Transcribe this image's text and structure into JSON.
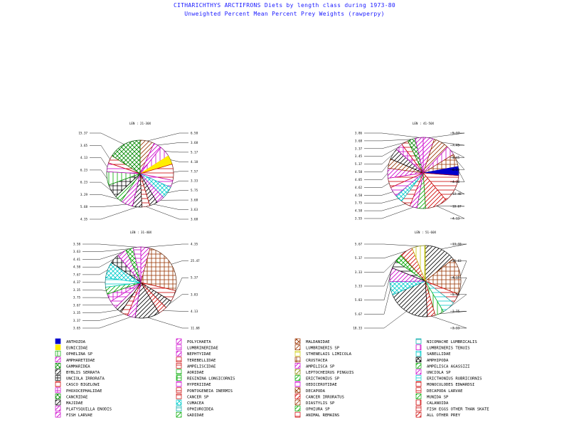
{
  "header": {
    "title": "CITHARICHTHYS ARCTIFRONS Diets by length class during 1973-80",
    "subtitle": "Unweighted Percent Mean Percent Prey  Weights (rawperpy)"
  },
  "legend": {
    "items": [
      {
        "name": "ANTHOZOA",
        "color": "#0000cc",
        "pattern": "solid"
      },
      {
        "name": "POLYCHAETA",
        "color": "#cc00cc",
        "pattern": "diag"
      },
      {
        "name": "MALDANIDAE",
        "color": "#993300",
        "pattern": "grid"
      },
      {
        "name": "NICOMACHE LUMBRICALIS",
        "color": "#00aaaa",
        "pattern": "horiz"
      },
      {
        "name": "EUNICIDAE",
        "color": "#ffee00",
        "pattern": "solid"
      },
      {
        "name": "LUMBRINERIDAE",
        "color": "#cc00cc",
        "pattern": "horiz"
      },
      {
        "name": "LUMBRINERIS SP",
        "color": "#993300",
        "pattern": "diag"
      },
      {
        "name": "LUMBRINERIS TENUIS",
        "color": "#cc00cc",
        "pattern": "vert"
      },
      {
        "name": "OPHELINA SP",
        "color": "#00aa00",
        "pattern": "vert"
      },
      {
        "name": "NEPHTYIDAE",
        "color": "#cc00cc",
        "pattern": "diag"
      },
      {
        "name": "STHENELAIS LIMICOLA",
        "color": "#cccc00",
        "pattern": "horiz"
      },
      {
        "name": "SABELLIDAE",
        "color": "#00cccc",
        "pattern": "cross"
      },
      {
        "name": "AMPHARETIDAE",
        "color": "#cc00cc",
        "pattern": "diag"
      },
      {
        "name": "TEREBELLIDAE",
        "color": "#cc0000",
        "pattern": "horiz"
      },
      {
        "name": "CRUSTACEA",
        "color": "#993300",
        "pattern": "cross"
      },
      {
        "name": "AMPHIPODA",
        "color": "#000000",
        "pattern": "grid"
      },
      {
        "name": "GAMMARIDEA",
        "color": "#008800",
        "pattern": "grid"
      },
      {
        "name": "AMPELISCIDAE",
        "color": "#cc0000",
        "pattern": "horiz"
      },
      {
        "name": "AMPELISCA SP",
        "color": "#cc00cc",
        "pattern": "diag"
      },
      {
        "name": "AMPELISCA AGASSIZI",
        "color": "#00aa00",
        "pattern": "diag"
      },
      {
        "name": "BYBLIS SERRATA",
        "color": "#000000",
        "pattern": "diag"
      },
      {
        "name": "AORIDAE",
        "color": "#00aa00",
        "pattern": "horiz"
      },
      {
        "name": "LEPTOCHEIRUS PINGUIS",
        "color": "#888800",
        "pattern": "diag"
      },
      {
        "name": "UNCIOLA SP",
        "color": "#cc00cc",
        "pattern": "diag"
      },
      {
        "name": "UNCIOLA IRRORATA",
        "color": "#000000",
        "pattern": "cross"
      },
      {
        "name": "REGININA LONGICORNIS",
        "color": "#00aa00",
        "pattern": "cross"
      },
      {
        "name": "ERICTHONIUS SP",
        "color": "#00aa00",
        "pattern": "diag"
      },
      {
        "name": "ERICTHONIUS RUBRICORNIS",
        "color": "#00cccc",
        "pattern": "horiz"
      },
      {
        "name": "CASCO BIGELOWI",
        "color": "#cc0000",
        "pattern": "horiz"
      },
      {
        "name": "HYPERIIDAE",
        "color": "#cc00cc",
        "pattern": "horiz"
      },
      {
        "name": "OEDICEROTIDAE",
        "color": "#cc00cc",
        "pattern": "horiz"
      },
      {
        "name": "MONOCULODES EDWARDSI",
        "color": "#cc0000",
        "pattern": "horiz"
      },
      {
        "name": "PHOXOCEPHALIDAE",
        "color": "#cc00cc",
        "pattern": "cross"
      },
      {
        "name": "PONTOGENEIA INERMIS",
        "color": "#cc0000",
        "pattern": "horiz"
      },
      {
        "name": "DECAPODA",
        "color": "#993300",
        "pattern": "grid"
      },
      {
        "name": "DECAPODA LARVAE",
        "color": "#cc0000",
        "pattern": "horiz"
      },
      {
        "name": "CANCRIDAE",
        "color": "#008800",
        "pattern": "grid"
      },
      {
        "name": "CANCER SP",
        "color": "#cc0000",
        "pattern": "horiz"
      },
      {
        "name": "CANCER IRRORATUS",
        "color": "#cc0000",
        "pattern": "diag"
      },
      {
        "name": "MUNIDA SP",
        "color": "#00aa00",
        "pattern": "diag"
      },
      {
        "name": "MAJIDAE",
        "color": "#000000",
        "pattern": "diag"
      },
      {
        "name": "CUMACEA",
        "color": "#00cccc",
        "pattern": "grid"
      },
      {
        "name": "DIASTYLIS SP",
        "color": "#993300",
        "pattern": "diag"
      },
      {
        "name": "CALANOIDA",
        "color": "#cc0000",
        "pattern": "vert"
      },
      {
        "name": "PLATYSQUILLA ENODIS",
        "color": "#cc00cc",
        "pattern": "diag"
      },
      {
        "name": "OPHIUROIDEA",
        "color": "#00aaaa",
        "pattern": "horiz"
      },
      {
        "name": "OPHIURA SP",
        "color": "#00aa00",
        "pattern": "diag"
      },
      {
        "name": "FISH EGGS OTHER THAN SKATE",
        "color": "#cc0000",
        "pattern": "horiz"
      },
      {
        "name": "FISH LARVAE",
        "color": "#cc00cc",
        "pattern": "diag"
      },
      {
        "name": "GADIDAE",
        "color": "#00aa00",
        "pattern": "diag"
      },
      {
        "name": "ANIMAL REMAINS",
        "color": "#cc0000",
        "pattern": "horiz"
      },
      {
        "name": "ALL OTHER PREY",
        "color": "#cc0000",
        "pattern": "diag"
      }
    ]
  },
  "chart_data": [
    {
      "type": "pie",
      "title": "LEN : 21-30X",
      "slices": [
        {
          "value": 6.58,
          "color": "#993300",
          "pattern": "diag"
        },
        {
          "value": 3.68,
          "color": "#cc00cc",
          "pattern": "diag"
        },
        {
          "value": 5.17,
          "color": "#cc00cc",
          "pattern": "vert"
        },
        {
          "value": 4.18,
          "color": "#ffee00",
          "pattern": "solid"
        },
        {
          "value": 7.57,
          "color": "#cc0000",
          "pattern": "horiz"
        },
        {
          "value": 3.33,
          "color": "#cc00cc",
          "pattern": "horiz"
        },
        {
          "value": 5.75,
          "color": "#00cccc",
          "pattern": "grid"
        },
        {
          "value": 3.68,
          "color": "#cc00cc",
          "pattern": "diag"
        },
        {
          "value": 3.63,
          "color": "#000000",
          "pattern": "diag"
        },
        {
          "value": 3.68,
          "color": "#cc0000",
          "pattern": "horiz"
        },
        {
          "value": 4.35,
          "color": "#000000",
          "pattern": "diag"
        },
        {
          "value": 5.68,
          "color": "#cc00cc",
          "pattern": "diag"
        },
        {
          "value": 3.29,
          "color": "#00aa00",
          "pattern": "diag"
        },
        {
          "value": 6.23,
          "color": "#000000",
          "pattern": "cross"
        },
        {
          "value": 6.23,
          "color": "#00aa00",
          "pattern": "vert"
        },
        {
          "value": 4.13,
          "color": "#cc00cc",
          "pattern": "horiz"
        },
        {
          "value": 3.65,
          "color": "#cc0000",
          "pattern": "horiz"
        },
        {
          "value": 15.37,
          "color": "#008800",
          "pattern": "grid"
        }
      ],
      "labels_right": [
        "6.58",
        "3.68",
        "5.17",
        "4.18",
        "7.57",
        "3.33",
        "5.75",
        "3.68",
        "3.63",
        "3.68"
      ],
      "labels_left": [
        "15.37",
        "3.65",
        "4.13",
        "6.23",
        "6.23",
        "3.29",
        "5.68",
        "4.35"
      ]
    },
    {
      "type": "pie",
      "title": "LEN : 41-50X",
      "slices": [
        {
          "value": 5.37,
          "color": "#cc00cc",
          "pattern": "diag"
        },
        {
          "value": 7.45,
          "color": "#993300",
          "pattern": "diag"
        },
        {
          "value": 4.45,
          "color": "#cc00cc",
          "pattern": "vert"
        },
        {
          "value": 6.23,
          "color": "#993300",
          "pattern": "cross"
        },
        {
          "value": 4.38,
          "color": "#0000cc",
          "pattern": "solid"
        },
        {
          "value": 13.48,
          "color": "#cc0000",
          "pattern": "horiz"
        },
        {
          "value": 10.67,
          "color": "#cc0000",
          "pattern": "diag"
        },
        {
          "value": 4.13,
          "color": "#00aa00",
          "pattern": "diag"
        },
        {
          "value": 3.55,
          "color": "#cc00cc",
          "pattern": "diag"
        },
        {
          "value": 4.58,
          "color": "#cc0000",
          "pattern": "horiz"
        },
        {
          "value": 3.75,
          "color": "#00cccc",
          "pattern": "grid"
        },
        {
          "value": 4.58,
          "color": "#cc00cc",
          "pattern": "horiz"
        },
        {
          "value": 4.62,
          "color": "#cc0000",
          "pattern": "horiz"
        },
        {
          "value": 4.85,
          "color": "#cc00cc",
          "pattern": "diag"
        },
        {
          "value": 4.58,
          "color": "#993300",
          "pattern": "diag"
        },
        {
          "value": 5.37,
          "color": "#000000",
          "pattern": "diag"
        },
        {
          "value": 3.45,
          "color": "#cc00cc",
          "pattern": "cross"
        },
        {
          "value": 3.37,
          "color": "#cc0000",
          "pattern": "horiz"
        },
        {
          "value": 3.68,
          "color": "#008800",
          "pattern": "grid"
        },
        {
          "value": 3.86,
          "color": "#cc00cc",
          "pattern": "diag"
        }
      ],
      "labels_right": [
        "5.37",
        "7.45",
        "4.45",
        "6.23",
        "4.38",
        "13.48",
        "10.67",
        "4.13"
      ],
      "labels_left": [
        "3.86",
        "3.68",
        "3.37",
        "3.45",
        "5.37",
        "4.58",
        "4.85",
        "4.62",
        "4.58",
        "3.75",
        "4.58",
        "3.55"
      ]
    },
    {
      "type": "pie",
      "title": "LEN : 31-40X",
      "slices": [
        {
          "value": 4.35,
          "color": "#cc00cc",
          "pattern": "diag"
        },
        {
          "value": 25.47,
          "color": "#993300",
          "pattern": "cross"
        },
        {
          "value": 5.37,
          "color": "#cc0000",
          "pattern": "horiz"
        },
        {
          "value": 3.83,
          "color": "#000000",
          "pattern": "diag"
        },
        {
          "value": 4.13,
          "color": "#cc0000",
          "pattern": "diag"
        },
        {
          "value": 11.68,
          "color": "#000000",
          "pattern": "diag"
        },
        {
          "value": 3.65,
          "color": "#cc00cc",
          "pattern": "diag"
        },
        {
          "value": 3.37,
          "color": "#cc0000",
          "pattern": "horiz"
        },
        {
          "value": 3.35,
          "color": "#000000",
          "pattern": "diag"
        },
        {
          "value": 3.67,
          "color": "#cc00cc",
          "pattern": "horiz"
        },
        {
          "value": 3.75,
          "color": "#cc00cc",
          "pattern": "cross"
        },
        {
          "value": 3.35,
          "color": "#00aa00",
          "pattern": "diag"
        },
        {
          "value": 4.37,
          "color": "#00cccc",
          "pattern": "horiz"
        },
        {
          "value": 7.67,
          "color": "#00cccc",
          "pattern": "grid"
        },
        {
          "value": 4.58,
          "color": "#000000",
          "pattern": "cross"
        },
        {
          "value": 4.41,
          "color": "#cc00cc",
          "pattern": "diag"
        },
        {
          "value": 3.63,
          "color": "#00aa00",
          "pattern": "grid"
        },
        {
          "value": 3.58,
          "color": "#cc00cc",
          "pattern": "horiz"
        }
      ],
      "labels_right": [
        "4.35",
        "25.47",
        "5.37",
        "3.83",
        "4.13",
        "11.68"
      ],
      "labels_left": [
        "3.58",
        "3.63",
        "4.41",
        "4.58",
        "7.67",
        "4.37",
        "3.35",
        "3.75",
        "3.67",
        "3.35",
        "3.37",
        "3.65"
      ]
    },
    {
      "type": "pie",
      "title": "LEN : 51-60X",
      "slices": [
        {
          "value": 13.33,
          "color": "#000000",
          "pattern": "diag"
        },
        {
          "value": 15.63,
          "color": "#993300",
          "pattern": "cross"
        },
        {
          "value": 4.17,
          "color": "#cc0000",
          "pattern": "horiz"
        },
        {
          "value": 5.55,
          "color": "#00cccc",
          "pattern": "horiz"
        },
        {
          "value": 3.75,
          "color": "#00aa00",
          "pattern": "vert"
        },
        {
          "value": 3.33,
          "color": "#cc0000",
          "pattern": "diag"
        },
        {
          "value": 18.33,
          "color": "#000000",
          "pattern": "diag"
        },
        {
          "value": 5.67,
          "color": "#00cccc",
          "pattern": "grid"
        },
        {
          "value": 5.83,
          "color": "#cc00cc",
          "pattern": "diag"
        },
        {
          "value": 3.33,
          "color": "#000000",
          "pattern": "horiz"
        },
        {
          "value": 3.33,
          "color": "#00aa00",
          "pattern": "grid"
        },
        {
          "value": 5.37,
          "color": "#cc0000",
          "pattern": "diag"
        },
        {
          "value": 5.67,
          "color": "#cccc00",
          "pattern": "vert"
        }
      ],
      "labels_right": [
        "13.33",
        "15.63",
        "4.17",
        "5.55",
        "3.75",
        "3.33"
      ],
      "labels_left": [
        "5.67",
        "5.37",
        "3.33",
        "3.33",
        "5.83",
        "5.67",
        "18.33"
      ]
    }
  ]
}
